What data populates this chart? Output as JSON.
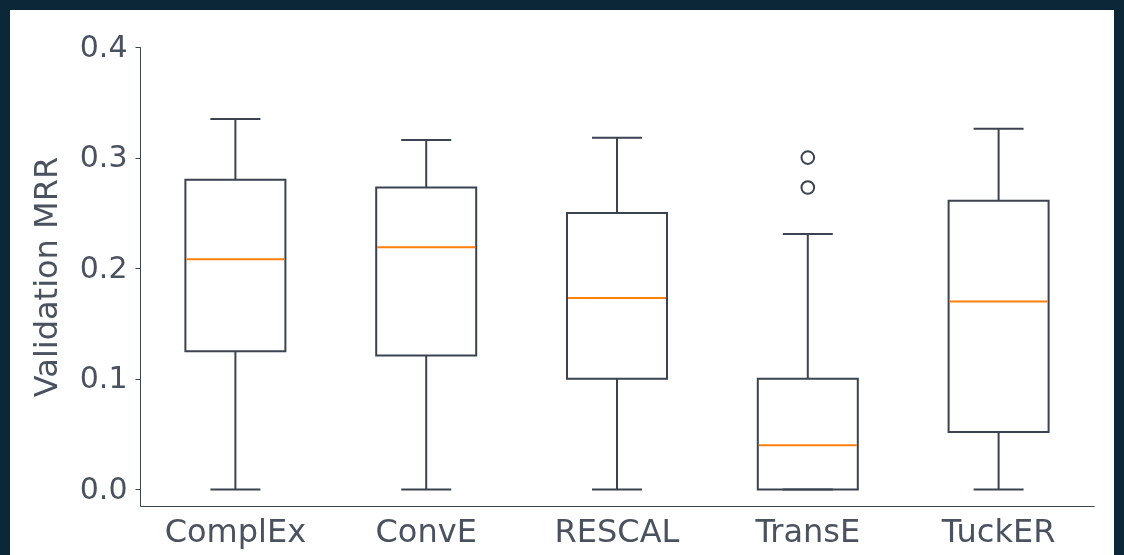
{
  "chart_data": {
    "type": "box",
    "ylabel": "Validation MRR",
    "categories": [
      "ComplEx",
      "ConvE",
      "RESCAL",
      "TransE",
      "TuckER"
    ],
    "boxes": [
      {
        "low": 0,
        "q1": 0.125,
        "median": 0.208,
        "q3": 0.28,
        "high": 0.335
      },
      {
        "low": 0,
        "q1": 0.121,
        "median": 0.219,
        "q3": 0.273,
        "high": 0.316
      },
      {
        "low": 0,
        "q1": 0.1,
        "median": 0.173,
        "q3": 0.25,
        "high": 0.318
      },
      {
        "low": 0,
        "q1": 0,
        "median": 0.04,
        "q3": 0.1,
        "high": 0.231,
        "outliers": [
          0.273,
          0.3
        ]
      },
      {
        "low": 0,
        "q1": 0.052,
        "median": 0.17,
        "q3": 0.261,
        "high": 0.326
      }
    ],
    "ylim": [
      -0.015,
      0.4
    ],
    "yticks": [
      {
        "value": 0,
        "label": "0.0"
      },
      0.1,
      0.2,
      0.3,
      0.4
    ],
    "grid": false
  }
}
